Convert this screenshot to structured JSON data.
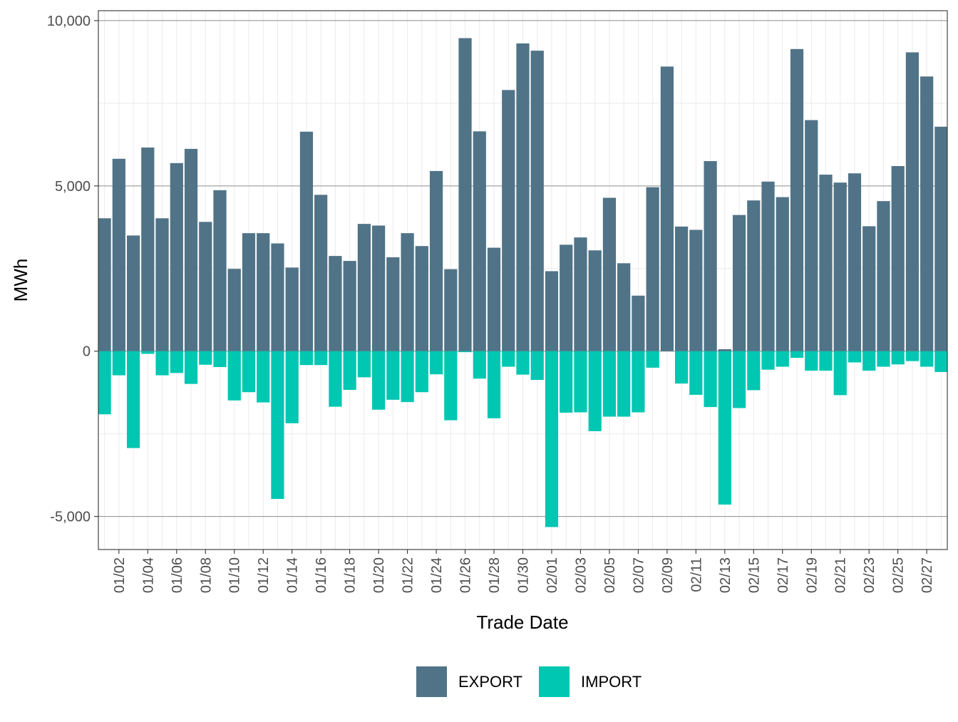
{
  "chart_data": {
    "type": "bar",
    "xlabel": "Trade Date",
    "ylabel": "MWh",
    "ylim": [
      -6000,
      10300
    ],
    "y_ticks": [
      -5000,
      0,
      5000,
      10000
    ],
    "y_tick_labels": [
      "-5,000",
      "0",
      "5,000",
      "10,000"
    ],
    "legend_position": "bottom",
    "categories": [
      "01/01",
      "01/02",
      "01/03",
      "01/04",
      "01/05",
      "01/06",
      "01/07",
      "01/08",
      "01/09",
      "01/10",
      "01/11",
      "01/12",
      "01/13",
      "01/14",
      "01/15",
      "01/16",
      "01/17",
      "01/18",
      "01/19",
      "01/20",
      "01/21",
      "01/22",
      "01/23",
      "01/24",
      "01/25",
      "01/26",
      "01/27",
      "01/28",
      "01/29",
      "01/30",
      "01/31",
      "02/01",
      "02/02",
      "02/03",
      "02/04",
      "02/05",
      "02/06",
      "02/07",
      "02/08",
      "02/09",
      "02/10",
      "02/11",
      "02/12",
      "02/13",
      "02/14",
      "02/15",
      "02/16",
      "02/17",
      "02/18",
      "02/19",
      "02/20",
      "02/21",
      "02/22",
      "02/23",
      "02/24",
      "02/25",
      "02/26",
      "02/27",
      "02/28"
    ],
    "x_tick_labels": [
      "01/02",
      "01/04",
      "01/06",
      "01/08",
      "01/10",
      "01/12",
      "01/14",
      "01/16",
      "01/18",
      "01/20",
      "01/22",
      "01/24",
      "01/26",
      "01/28",
      "01/30",
      "02/01",
      "02/03",
      "02/05",
      "02/07",
      "02/09",
      "02/11",
      "02/13",
      "02/15",
      "02/17",
      "02/19",
      "02/21",
      "02/23",
      "02/25",
      "02/27"
    ],
    "series": [
      {
        "name": "EXPORT",
        "color": "#507387",
        "values": [
          4020,
          5820,
          3500,
          6160,
          4020,
          5690,
          6120,
          3910,
          4870,
          2490,
          3570,
          3570,
          3260,
          2530,
          6640,
          4730,
          2880,
          2730,
          3850,
          3800,
          2840,
          3570,
          3180,
          5450,
          2480,
          9470,
          6650,
          3130,
          7900,
          9310,
          9090,
          2420,
          3220,
          3440,
          3050,
          4640,
          2660,
          1680,
          4960,
          8610,
          3770,
          3670,
          5750,
          60,
          4120,
          4560,
          5130,
          4660,
          9140,
          6990,
          5340,
          5100,
          5380,
          3780,
          4540,
          5600,
          9040,
          8310,
          6790
        ]
      },
      {
        "name": "IMPORT",
        "color": "#00c7b2",
        "values": [
          -1910,
          -730,
          -2930,
          -80,
          -730,
          -660,
          -990,
          -410,
          -480,
          -1490,
          -1240,
          -1550,
          -4470,
          -2180,
          -420,
          -420,
          -1680,
          -1170,
          -790,
          -1770,
          -1470,
          -1540,
          -1240,
          -700,
          -2090,
          -30,
          -830,
          -2030,
          -470,
          -710,
          -870,
          -5320,
          -1860,
          -1850,
          -2420,
          -1980,
          -1980,
          -1850,
          -500,
          0,
          -980,
          -1320,
          -1690,
          -4640,
          -1720,
          -1180,
          -560,
          -470,
          -200,
          -590,
          -590,
          -1330,
          -340,
          -590,
          -470,
          -400,
          -300,
          -470,
          -630
        ]
      }
    ]
  }
}
